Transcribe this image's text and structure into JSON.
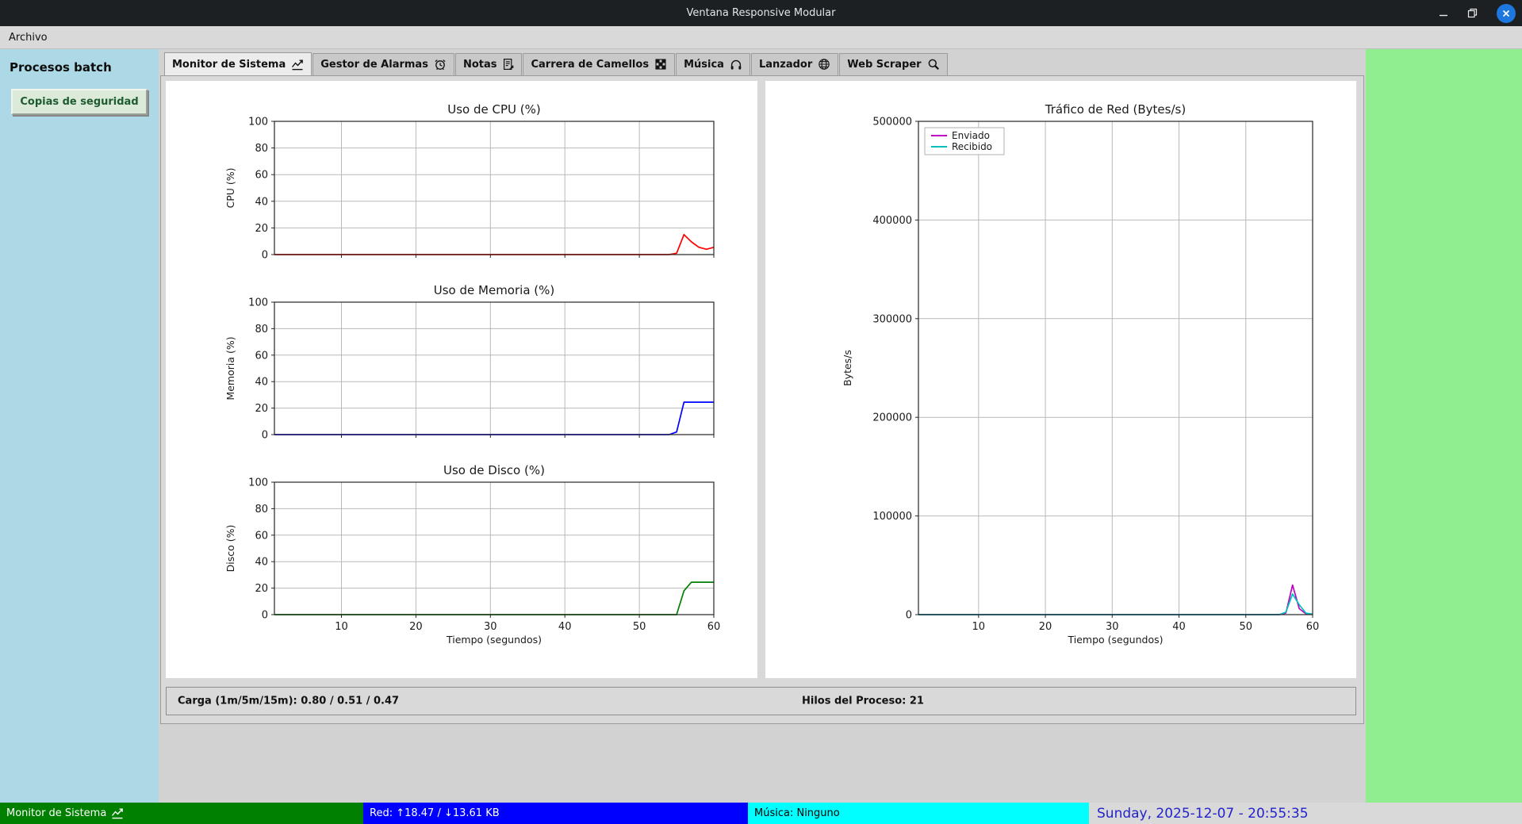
{
  "window": {
    "title": "Ventana Responsive Modular",
    "controls": {
      "minimize": "minimize",
      "maximize": "maximize",
      "close": "close"
    }
  },
  "menubar": {
    "items": [
      {
        "label": "Archivo"
      }
    ]
  },
  "sidebar": {
    "title": "Procesos batch",
    "buttons": [
      {
        "label": "Copias de seguridad"
      }
    ]
  },
  "tabs": [
    {
      "label": "Monitor de Sistema",
      "icon": "chart-increasing-icon",
      "active": true
    },
    {
      "label": "Gestor de Alarmas",
      "icon": "alarm-clock-icon",
      "active": false
    },
    {
      "label": "Notas",
      "icon": "memo-icon",
      "active": false
    },
    {
      "label": "Carrera de Camellos",
      "icon": "checkered-flag-icon",
      "active": false
    },
    {
      "label": "Música",
      "icon": "headphones-icon",
      "active": false
    },
    {
      "label": "Lanzador",
      "icon": "globe-icon",
      "active": false
    },
    {
      "label": "Web Scraper",
      "icon": "magnifier-icon",
      "active": false
    }
  ],
  "monitor": {
    "load_label": "Carga (1m/5m/15m): 0.80 / 0.51 / 0.47",
    "threads_label": "Hilos del Proceso: 21"
  },
  "statusbar": {
    "segments": [
      {
        "label": "Monitor de Sistema",
        "icon": "chart-increasing-icon",
        "bg": "#008000",
        "fg": "#ffffff"
      },
      {
        "label": "Red: ↑18.47 / ↓13.61 KB",
        "bg": "#0000ff",
        "fg": "#ffffff"
      },
      {
        "label": "Música: Ninguno",
        "bg": "#00ffff",
        "fg": "#000000"
      },
      {
        "label": "Sunday, 2025-12-07 - 20:55:35",
        "bg": "#d9d9d9",
        "fg": "#2323cc"
      }
    ]
  },
  "colors": {
    "sidebar_bg": "#add8e6",
    "right_panel_bg": "#90ee90",
    "cpu_line": "#ff0000",
    "memory_line": "#0000ff",
    "disk_line": "#008000",
    "sent_line": "#bf00bf",
    "received_line": "#00bfbf"
  },
  "chart_data": [
    {
      "type": "line",
      "title": "Uso de CPU (%)",
      "ylabel": "CPU (%)",
      "xlabel": "",
      "xlim": [
        1,
        60
      ],
      "ylim": [
        0,
        100
      ],
      "xticks": [
        10,
        20,
        30,
        40,
        50,
        60
      ],
      "yticks": [
        0,
        20,
        40,
        60,
        80,
        100
      ],
      "grid": true,
      "x_start": 1,
      "series": [
        {
          "name": "CPU",
          "color": "#ff0000",
          "values": [
            0,
            0,
            0,
            0,
            0,
            0,
            0,
            0,
            0,
            0,
            0,
            0,
            0,
            0,
            0,
            0,
            0,
            0,
            0,
            0,
            0,
            0,
            0,
            0,
            0,
            0,
            0,
            0,
            0,
            0,
            0,
            0,
            0,
            0,
            0,
            0,
            0,
            0,
            0,
            0,
            0,
            0,
            0,
            0,
            0,
            0,
            0,
            0,
            0,
            0,
            0,
            0,
            0,
            0,
            1,
            15,
            9.5,
            5.5,
            4,
            5.5
          ]
        }
      ]
    },
    {
      "type": "line",
      "title": "Uso de Memoria (%)",
      "ylabel": "Memoria (%)",
      "xlabel": "",
      "xlim": [
        1,
        60
      ],
      "ylim": [
        0,
        100
      ],
      "xticks": [
        10,
        20,
        30,
        40,
        50,
        60
      ],
      "yticks": [
        0,
        20,
        40,
        60,
        80,
        100
      ],
      "grid": true,
      "x_start": 1,
      "series": [
        {
          "name": "Memoria",
          "color": "#0000ff",
          "values": [
            0,
            0,
            0,
            0,
            0,
            0,
            0,
            0,
            0,
            0,
            0,
            0,
            0,
            0,
            0,
            0,
            0,
            0,
            0,
            0,
            0,
            0,
            0,
            0,
            0,
            0,
            0,
            0,
            0,
            0,
            0,
            0,
            0,
            0,
            0,
            0,
            0,
            0,
            0,
            0,
            0,
            0,
            0,
            0,
            0,
            0,
            0,
            0,
            0,
            0,
            0,
            0,
            0,
            0,
            2,
            24.5,
            24.5,
            24.5,
            24.5,
            24.5
          ]
        }
      ]
    },
    {
      "type": "line",
      "title": "Uso de Disco (%)",
      "ylabel": "Disco (%)",
      "xlabel": "Tiempo (segundos)",
      "xlim": [
        1,
        60
      ],
      "ylim": [
        0,
        100
      ],
      "xticks": [
        10,
        20,
        30,
        40,
        50,
        60
      ],
      "yticks": [
        0,
        20,
        40,
        60,
        80,
        100
      ],
      "grid": true,
      "x_start": 1,
      "series": [
        {
          "name": "Disco",
          "color": "#008000",
          "values": [
            0,
            0,
            0,
            0,
            0,
            0,
            0,
            0,
            0,
            0,
            0,
            0,
            0,
            0,
            0,
            0,
            0,
            0,
            0,
            0,
            0,
            0,
            0,
            0,
            0,
            0,
            0,
            0,
            0,
            0,
            0,
            0,
            0,
            0,
            0,
            0,
            0,
            0,
            0,
            0,
            0,
            0,
            0,
            0,
            0,
            0,
            0,
            0,
            0,
            0,
            0,
            0,
            0,
            0,
            0,
            18,
            24.5,
            24.5,
            24.5,
            24.5
          ]
        }
      ]
    },
    {
      "type": "line",
      "title": "Tráfico de Red (Bytes/s)",
      "ylabel": "Bytes/s",
      "xlabel": "Tiempo (segundos)",
      "xlim": [
        1,
        60
      ],
      "ylim": [
        0,
        500000
      ],
      "xticks": [
        10,
        20,
        30,
        40,
        50,
        60
      ],
      "yticks": [
        0,
        100000,
        200000,
        300000,
        400000,
        500000
      ],
      "grid": true,
      "legend": {
        "position": "upper-left",
        "entries": [
          "Enviado",
          "Recibido"
        ]
      },
      "x_start": 1,
      "series": [
        {
          "name": "Enviado",
          "color": "#bf00bf",
          "values": [
            0,
            0,
            0,
            0,
            0,
            0,
            0,
            0,
            0,
            0,
            0,
            0,
            0,
            0,
            0,
            0,
            0,
            0,
            0,
            0,
            0,
            0,
            0,
            0,
            0,
            0,
            0,
            0,
            0,
            0,
            0,
            0,
            0,
            0,
            0,
            0,
            0,
            0,
            0,
            0,
            0,
            0,
            0,
            0,
            0,
            0,
            0,
            0,
            0,
            0,
            0,
            0,
            0,
            0,
            0,
            1500,
            30000,
            6000,
            800,
            300
          ]
        },
        {
          "name": "Recibido",
          "color": "#00bfbf",
          "values": [
            0,
            0,
            0,
            0,
            0,
            0,
            0,
            0,
            0,
            0,
            0,
            0,
            0,
            0,
            0,
            0,
            0,
            0,
            0,
            0,
            0,
            0,
            0,
            0,
            0,
            0,
            0,
            0,
            0,
            0,
            0,
            0,
            0,
            0,
            0,
            0,
            0,
            0,
            0,
            0,
            0,
            0,
            0,
            0,
            0,
            0,
            0,
            0,
            0,
            0,
            0,
            0,
            0,
            0,
            0,
            2500,
            21000,
            10000,
            1500,
            600
          ]
        }
      ]
    }
  ]
}
